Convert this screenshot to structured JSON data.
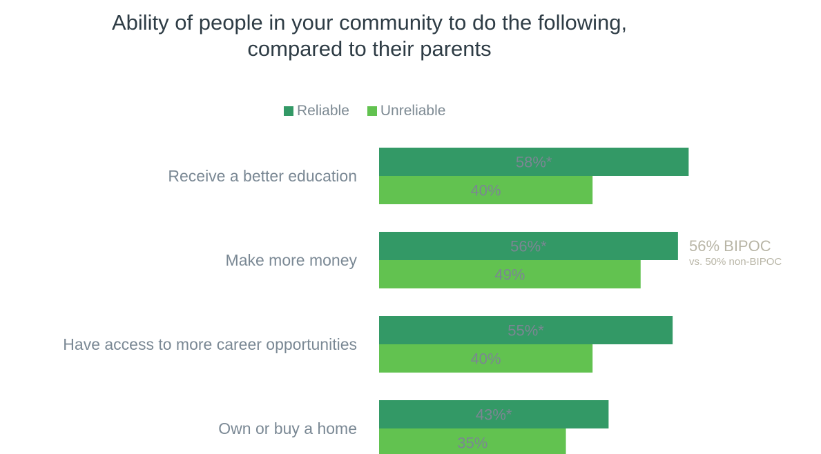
{
  "title": "Ability of people in your community to do the following,\ncompared to their parents",
  "colors": {
    "reliable": "#339966",
    "unreliable": "#62c250"
  },
  "legend": [
    {
      "label": "Reliable",
      "color": "#339966"
    },
    {
      "label": "Unreliable",
      "color": "#62c250"
    }
  ],
  "callout": {
    "main": "56% BIPOC",
    "sub": "vs. 50% non-BIPOC"
  },
  "chart_data": {
    "type": "bar",
    "orientation": "horizontal",
    "title": "Ability of people in your community to do the following, compared to their parents",
    "categories": [
      "Receive a better education",
      "Make more money",
      "Have access to more career opportunities",
      "Own or buy a home"
    ],
    "series": [
      {
        "name": "Reliable",
        "values": [
          58,
          56,
          55,
          43
        ],
        "labels": [
          "58%*",
          "56%*",
          "55%*",
          "43%*"
        ]
      },
      {
        "name": "Unreliable",
        "values": [
          40,
          49,
          40,
          35
        ],
        "labels": [
          "40%",
          "49%",
          "40%",
          "35%"
        ]
      }
    ],
    "unit": "%",
    "xlim": [
      0,
      100
    ],
    "grid": false,
    "legend_position": "top"
  }
}
